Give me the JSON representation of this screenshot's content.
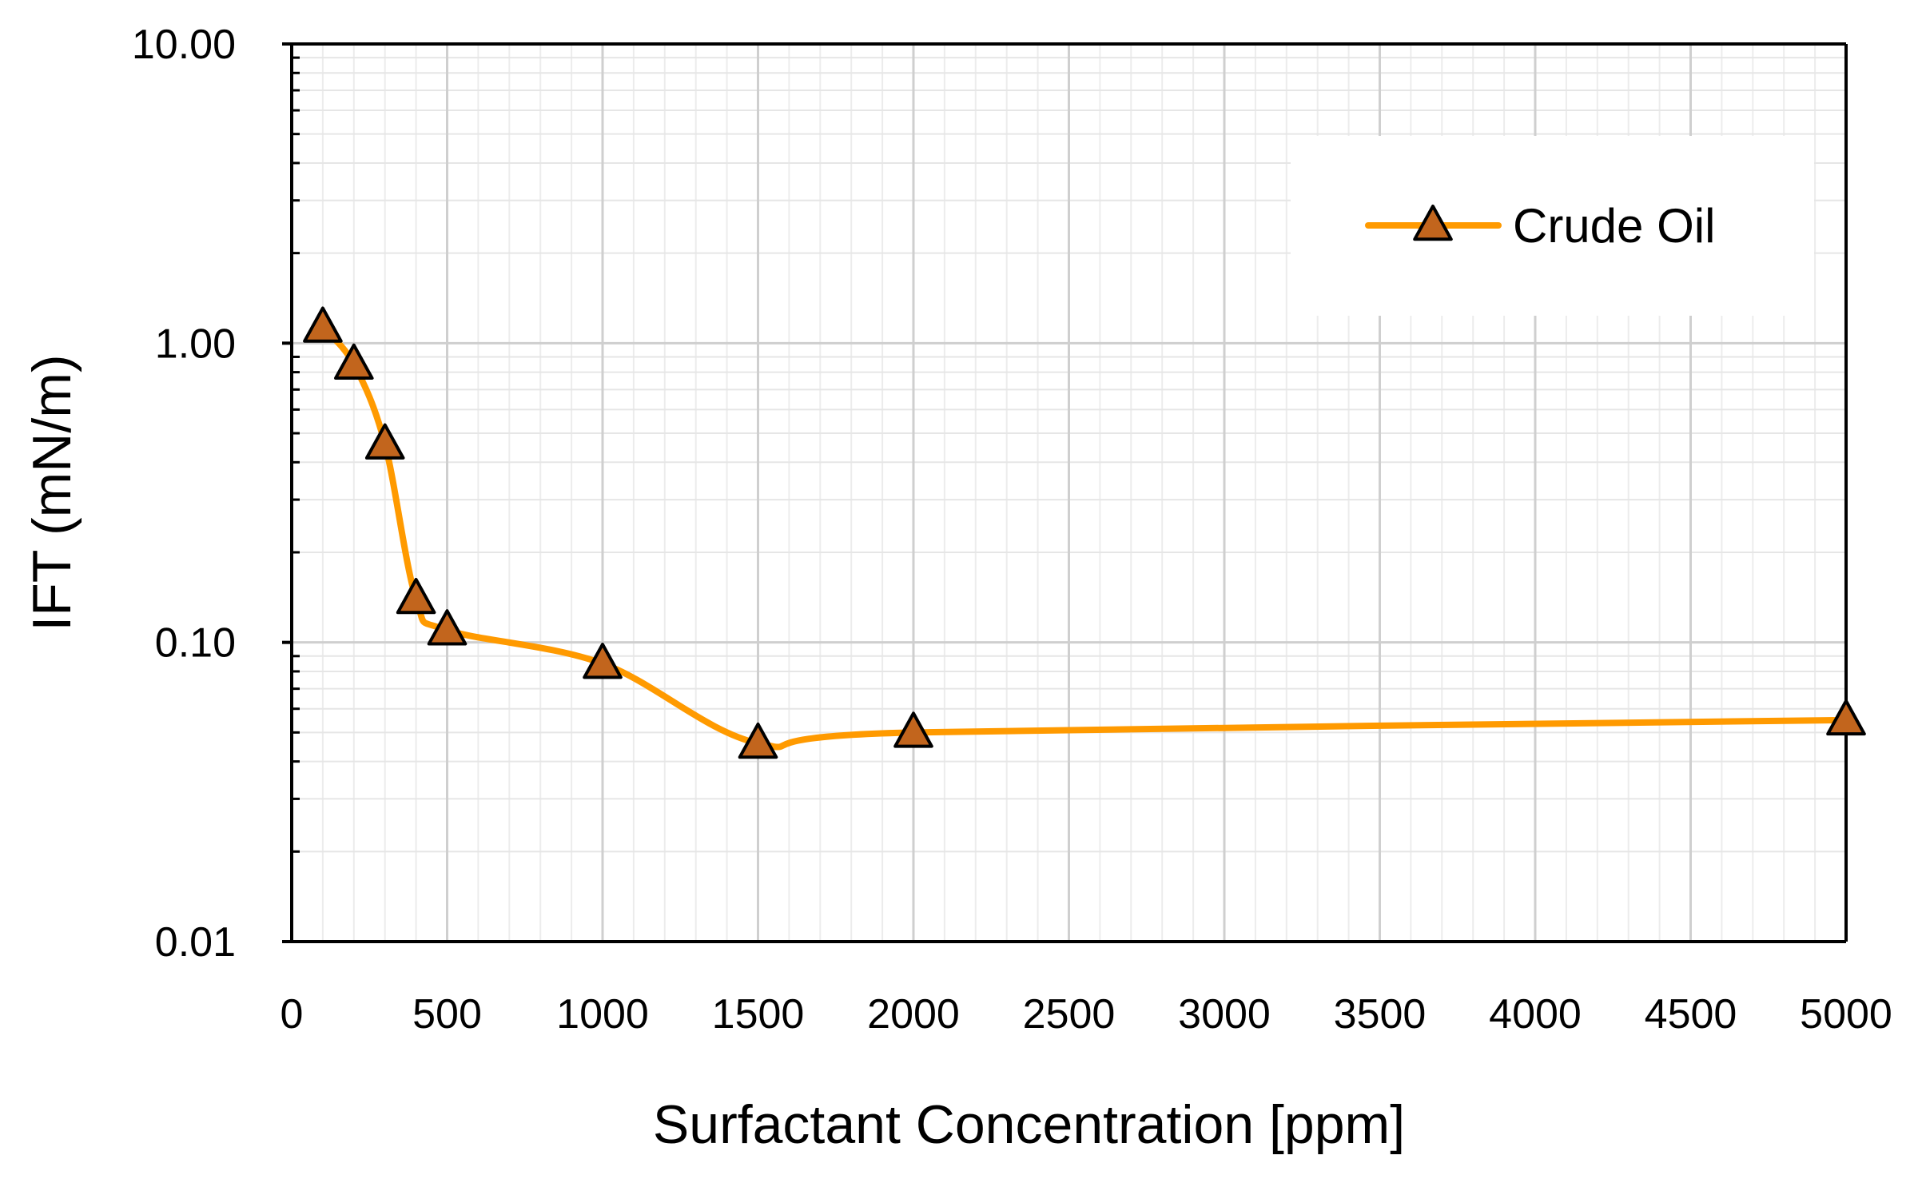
{
  "chart_data": {
    "type": "line",
    "title": "",
    "xlabel": "Surfactant Concentration  [ppm]",
    "ylabel": "IFT (mN/m)",
    "x_scale": "linear",
    "y_scale": "log",
    "xlim": [
      0,
      5000
    ],
    "ylim": [
      0.01,
      10
    ],
    "x_ticks": [
      0,
      500,
      1000,
      1500,
      2000,
      2500,
      3000,
      3500,
      4000,
      4500,
      5000
    ],
    "x_tick_labels": [
      "0",
      "500",
      "1000",
      "1500",
      "2000",
      "2500",
      "3000",
      "3500",
      "4000",
      "4500",
      "5000"
    ],
    "y_ticks": [
      0.01,
      0.1,
      1,
      10
    ],
    "y_tick_labels": [
      "0.01",
      "0.10",
      "1.00",
      "10.00"
    ],
    "grid": true,
    "legend_position": "top-right",
    "series": [
      {
        "name": "Crude Oil",
        "marker": "triangle",
        "line_color": "#FF9A00",
        "marker_fill": "#C2651D",
        "marker_edge": "#000000",
        "x": [
          100,
          200,
          300,
          400,
          500,
          1000,
          1500,
          2000,
          5000
        ],
        "y": [
          1.13,
          0.85,
          0.46,
          0.14,
          0.11,
          0.085,
          0.046,
          0.05,
          0.055
        ]
      }
    ]
  }
}
